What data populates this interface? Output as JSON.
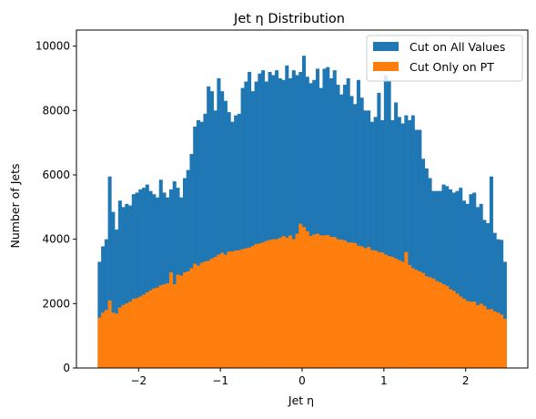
{
  "chart_data": {
    "type": "bar",
    "title": "Jet η Distribution",
    "xlabel": "Jet η",
    "ylabel": "Number of Jets",
    "xlim": [
      -2.76,
      2.76
    ],
    "ylim": [
      0,
      10500
    ],
    "xticks": [
      -2,
      -1,
      0,
      1,
      2
    ],
    "xtick_labels": [
      "−2",
      "−1",
      "0",
      "1",
      "2"
    ],
    "yticks": [
      0,
      2000,
      4000,
      6000,
      8000,
      10000
    ],
    "ytick_labels": [
      "0",
      "2000",
      "4000",
      "6000",
      "8000",
      "10000"
    ],
    "bin_range": [
      -2.5,
      2.5
    ],
    "legend_position": "top-right",
    "grid": false,
    "series": [
      {
        "name": "Cut on All Values",
        "color": "#1f77b4",
        "values": [
          3300,
          3780,
          4000,
          5950,
          4850,
          4300,
          5200,
          5000,
          5100,
          5050,
          5400,
          5450,
          5550,
          5600,
          5700,
          5500,
          5400,
          5300,
          5850,
          5450,
          5300,
          5550,
          5800,
          5600,
          5300,
          5900,
          6150,
          6650,
          7500,
          7700,
          7650,
          7900,
          8750,
          8600,
          8000,
          9000,
          8600,
          8300,
          7950,
          7650,
          7850,
          7900,
          8700,
          8900,
          9200,
          8600,
          8900,
          9150,
          9250,
          8900,
          9200,
          9100,
          9250,
          9000,
          8950,
          9400,
          9000,
          9250,
          9100,
          9200,
          9700,
          9050,
          8850,
          8950,
          9300,
          8700,
          9300,
          9350,
          9000,
          9250,
          8800,
          8500,
          8800,
          9000,
          8450,
          8200,
          8950,
          8400,
          8000,
          8000,
          7650,
          7800,
          8550,
          7700,
          9100,
          8950,
          7700,
          8250,
          7800,
          7600,
          7850,
          7700,
          7850,
          7400,
          7400,
          6500,
          6200,
          5900,
          5500,
          5500,
          5500,
          5700,
          5650,
          5550,
          5450,
          5500,
          5600,
          5200,
          5100,
          5400,
          5450,
          5000,
          5100,
          4600,
          4500,
          5950,
          4200,
          4000,
          3980,
          3300
        ]
      },
      {
        "name": "Cut Only on PT",
        "color": "#ff7f0e",
        "values": [
          1570,
          1720,
          1800,
          2100,
          1720,
          1690,
          1880,
          1960,
          2010,
          2060,
          2150,
          2170,
          2220,
          2280,
          2350,
          2410,
          2470,
          2500,
          2570,
          2600,
          2630,
          2970,
          2600,
          2900,
          2870,
          2970,
          3000,
          3100,
          3240,
          3180,
          3270,
          3310,
          3330,
          3400,
          3450,
          3520,
          3580,
          3520,
          3620,
          3620,
          3650,
          3660,
          3690,
          3720,
          3740,
          3790,
          3850,
          3870,
          3900,
          3950,
          3980,
          4000,
          4000,
          4040,
          4100,
          4050,
          4120,
          4000,
          4170,
          4480,
          4380,
          4250,
          4100,
          4150,
          4170,
          4120,
          4120,
          4130,
          4070,
          4070,
          4000,
          3990,
          3960,
          3900,
          3900,
          3880,
          3800,
          3780,
          3720,
          3760,
          3660,
          3650,
          3600,
          3590,
          3520,
          3480,
          3450,
          3400,
          3350,
          3300,
          3600,
          3200,
          3100,
          3050,
          3000,
          2950,
          2850,
          2820,
          2780,
          2700,
          2660,
          2600,
          2550,
          2450,
          2400,
          2310,
          2220,
          2150,
          2080,
          2060,
          2060,
          1950,
          2000,
          1930,
          1820,
          1830,
          1760,
          1720,
          1660,
          1530
        ]
      }
    ]
  }
}
